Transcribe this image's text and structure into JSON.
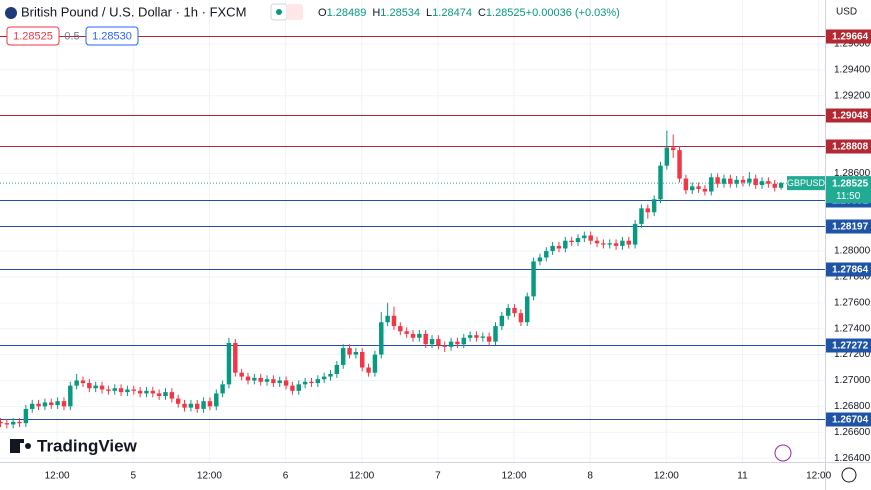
{
  "chart_data": {
    "type": "candlestick",
    "title": "British Pound / U.S. Dollar · 1h · FXCM",
    "ohlc_legend": [
      {
        "key": "O",
        "value": "1.28489"
      },
      {
        "key": "H",
        "value": "1.28534"
      },
      {
        "key": "L",
        "value": "1.28474"
      },
      {
        "key": "C",
        "value": "1.28525"
      },
      {
        "key": "",
        "value": "+0.00036 (+0.03%)"
      }
    ],
    "bid": "1.28525",
    "spread": "0.5",
    "ask": "1.28530",
    "currency": "USD",
    "brand": "TradingView",
    "symbol": "GBPUSD",
    "countdown": "11:50",
    "last_price": 1.28525,
    "up_color": "#089981",
    "down_color": "#f23645",
    "last_color": "#22ab94",
    "grid": true,
    "xlim": [
      0,
      130
    ],
    "xticks": [
      {
        "value": 9,
        "label": "12:00"
      },
      {
        "value": 21,
        "label": "5"
      },
      {
        "value": 33,
        "label": "12:00"
      },
      {
        "value": 45,
        "label": "6"
      },
      {
        "value": 57,
        "label": "12:00"
      },
      {
        "value": 69,
        "label": "7"
      },
      {
        "value": 81,
        "label": "12:00"
      },
      {
        "value": 93,
        "label": "8"
      },
      {
        "value": 105,
        "label": "12:00"
      },
      {
        "value": 117,
        "label": "11"
      },
      {
        "value": 129,
        "label": "12:00"
      }
    ],
    "ylim": [
      1.2637,
      1.2994
    ],
    "yticks": [
      {
        "value": 1.296,
        "label": "1.29600"
      },
      {
        "value": 1.294,
        "label": "1.29400"
      },
      {
        "value": 1.292,
        "label": "1.29200"
      },
      {
        "value": 1.286,
        "label": "1.28600"
      },
      {
        "value": 1.28,
        "label": "1.28000"
      },
      {
        "value": 1.278,
        "label": "1.27800"
      },
      {
        "value": 1.276,
        "label": "1.27600"
      },
      {
        "value": 1.274,
        "label": "1.27400"
      },
      {
        "value": 1.272,
        "label": "1.27200"
      },
      {
        "value": 1.27,
        "label": "1.27000"
      },
      {
        "value": 1.268,
        "label": "1.26800"
      },
      {
        "value": 1.266,
        "label": "1.26600"
      },
      {
        "value": 1.264,
        "label": "1.26400"
      }
    ],
    "levels": [
      {
        "value": 1.29664,
        "color": "#b22833"
      },
      {
        "value": 1.29048,
        "color": "#b22833"
      },
      {
        "value": 1.28808,
        "color": "#b22833"
      },
      {
        "value": 1.28391,
        "color": "#1e53a6"
      },
      {
        "value": 1.28197,
        "color": "#1e53a6"
      },
      {
        "value": 1.27864,
        "color": "#1e53a6"
      },
      {
        "value": 1.27272,
        "color": "#1e53a6"
      },
      {
        "value": 1.26704,
        "color": "#1e53a6"
      }
    ],
    "open": [
      1.2668,
      1.2667,
      1.2666,
      1.2668,
      1.2667,
      1.2678,
      1.2682,
      1.268,
      1.2683,
      1.2681,
      1.2684,
      1.268,
      1.2696,
      1.27,
      1.2698,
      1.2694,
      1.2696,
      1.2693,
      1.2692,
      1.2694,
      1.2691,
      1.2693,
      1.2692,
      1.269,
      1.2692,
      1.269,
      1.2688,
      1.2691,
      1.2686,
      1.2682,
      1.2679,
      1.2682,
      1.2678,
      1.2684,
      1.268,
      1.269,
      1.2697,
      1.2729,
      1.2706,
      1.2703,
      1.27,
      1.2702,
      1.2699,
      1.2701,
      1.2698,
      1.27,
      1.2696,
      1.2692,
      1.2697,
      1.2699,
      1.2698,
      1.2701,
      1.2703,
      1.2705,
      1.2712,
      1.2725,
      1.272,
      1.2722,
      1.271,
      1.2706,
      1.272,
      1.2745,
      1.275,
      1.2742,
      1.2738,
      1.2736,
      1.2733,
      1.2736,
      1.2728,
      1.2732,
      1.2727,
      1.2726,
      1.273,
      1.2728,
      1.2733,
      1.2735,
      1.2733,
      1.2734,
      1.273,
      1.2742,
      1.275,
      1.2756,
      1.2752,
      1.2745,
      1.2765,
      1.2792,
      1.2795,
      1.28,
      1.2804,
      1.2802,
      1.2808,
      1.2807,
      1.281,
      1.2812,
      1.2808,
      1.2806,
      1.2805,
      1.2806,
      1.2804,
      1.2808,
      1.2805,
      1.2821,
      1.2833,
      1.283,
      1.284,
      1.2866,
      1.288,
      1.2878,
      1.2856,
      1.2847,
      1.285,
      1.2848,
      1.2846,
      1.2857,
      1.2852,
      1.2856,
      1.2852,
      1.2855,
      1.2853,
      1.2856,
      1.2851,
      1.2854,
      1.2852,
      1.28489
    ],
    "high": [
      1.2671,
      1.267,
      1.2671,
      1.2671,
      1.2681,
      1.2685,
      1.2685,
      1.2686,
      1.2686,
      1.2687,
      1.2687,
      1.2699,
      1.2705,
      1.2703,
      1.2701,
      1.2699,
      1.2699,
      1.2696,
      1.2697,
      1.2697,
      1.2696,
      1.2696,
      1.2695,
      1.2695,
      1.2695,
      1.2693,
      1.2694,
      1.2694,
      1.2689,
      1.2685,
      1.2685,
      1.2685,
      1.2687,
      1.2687,
      1.2693,
      1.27,
      1.2733,
      1.2732,
      1.2709,
      1.2706,
      1.2705,
      1.2705,
      1.2704,
      1.2704,
      1.2703,
      1.2703,
      1.2699,
      1.27,
      1.2702,
      1.2702,
      1.2704,
      1.2706,
      1.2708,
      1.2715,
      1.2728,
      1.2728,
      1.2725,
      1.2725,
      1.2713,
      1.2723,
      1.2753,
      1.276,
      1.2757,
      1.2745,
      1.2741,
      1.2739,
      1.2739,
      1.2739,
      1.2735,
      1.2735,
      1.273,
      1.2733,
      1.2733,
      1.2736,
      1.2738,
      1.2738,
      1.2737,
      1.2737,
      1.2745,
      1.2753,
      1.2759,
      1.2759,
      1.2755,
      1.2768,
      1.2795,
      1.2798,
      1.2803,
      1.2807,
      1.2807,
      1.2811,
      1.2811,
      1.2813,
      1.2815,
      1.2815,
      1.2811,
      1.2809,
      1.2809,
      1.2809,
      1.2811,
      1.2811,
      1.2824,
      1.2836,
      1.2836,
      1.2843,
      1.2869,
      1.2893,
      1.289,
      1.2881,
      1.2859,
      1.2853,
      1.2853,
      1.2851,
      1.286,
      1.286,
      1.2859,
      1.2859,
      1.2858,
      1.2858,
      1.2861,
      1.2859,
      1.2857,
      1.2857,
      1.2855,
      1.28534
    ],
    "low": [
      1.2664,
      1.2663,
      1.2663,
      1.2664,
      1.2664,
      1.2675,
      1.2677,
      1.2677,
      1.2678,
      1.2678,
      1.2677,
      1.2677,
      1.2693,
      1.2695,
      1.2691,
      1.2691,
      1.269,
      1.2689,
      1.2689,
      1.2688,
      1.2688,
      1.2689,
      1.2687,
      1.2687,
      1.2687,
      1.2685,
      1.2685,
      1.2683,
      1.2679,
      1.2676,
      1.2676,
      1.2675,
      1.2675,
      1.2677,
      1.2677,
      1.2687,
      1.2694,
      1.2703,
      1.27,
      1.2697,
      1.2697,
      1.2696,
      1.2696,
      1.2695,
      1.2695,
      1.2693,
      1.2689,
      1.2689,
      1.2694,
      1.2695,
      1.2695,
      1.2698,
      1.27,
      1.2702,
      1.2709,
      1.2717,
      1.2717,
      1.2707,
      1.2703,
      1.2703,
      1.2717,
      1.2742,
      1.2739,
      1.2735,
      1.2733,
      1.273,
      1.273,
      1.2725,
      1.2725,
      1.2724,
      1.2722,
      1.2723,
      1.2725,
      1.2725,
      1.273,
      1.273,
      1.273,
      1.2727,
      1.2727,
      1.2739,
      1.2747,
      1.2749,
      1.2742,
      1.2742,
      1.2762,
      1.2789,
      1.2792,
      1.2797,
      1.2799,
      1.2799,
      1.2804,
      1.2804,
      1.2807,
      1.2805,
      1.2803,
      1.2802,
      1.2802,
      1.2801,
      1.2801,
      1.2802,
      1.2802,
      1.2818,
      1.2825,
      1.2827,
      1.2837,
      1.2863,
      1.2872,
      1.2853,
      1.2844,
      1.2844,
      1.2845,
      1.2843,
      1.2843,
      1.2849,
      1.2849,
      1.2849,
      1.2849,
      1.285,
      1.285,
      1.2848,
      1.2848,
      1.2849,
      1.2846,
      1.28474
    ],
    "close": [
      1.2667,
      1.2666,
      1.2668,
      1.2667,
      1.2678,
      1.2682,
      1.268,
      1.2683,
      1.2681,
      1.2684,
      1.268,
      1.2696,
      1.27,
      1.2698,
      1.2694,
      1.2696,
      1.2693,
      1.2692,
      1.2694,
      1.2691,
      1.2693,
      1.2692,
      1.269,
      1.2692,
      1.269,
      1.2688,
      1.2691,
      1.2686,
      1.2682,
      1.2679,
      1.2682,
      1.2678,
      1.2684,
      1.268,
      1.269,
      1.2697,
      1.2729,
      1.2706,
      1.2703,
      1.27,
      1.2702,
      1.2699,
      1.2701,
      1.2698,
      1.27,
      1.2696,
      1.2692,
      1.2697,
      1.2699,
      1.2698,
      1.2701,
      1.2703,
      1.2705,
      1.2712,
      1.2725,
      1.272,
      1.2722,
      1.271,
      1.2706,
      1.272,
      1.2745,
      1.275,
      1.2742,
      1.2738,
      1.2736,
      1.2733,
      1.2736,
      1.2728,
      1.2732,
      1.2727,
      1.2726,
      1.273,
      1.2728,
      1.2733,
      1.2735,
      1.2733,
      1.2734,
      1.273,
      1.2742,
      1.275,
      1.2756,
      1.2752,
      1.2745,
      1.2765,
      1.2792,
      1.2795,
      1.28,
      1.2804,
      1.2802,
      1.2808,
      1.2807,
      1.281,
      1.2812,
      1.2808,
      1.2806,
      1.2805,
      1.2806,
      1.2804,
      1.2808,
      1.2805,
      1.2821,
      1.2833,
      1.283,
      1.284,
      1.2866,
      1.288,
      1.2878,
      1.2856,
      1.2847,
      1.285,
      1.2848,
      1.2846,
      1.2857,
      1.2852,
      1.2856,
      1.2852,
      1.2855,
      1.2853,
      1.2856,
      1.2851,
      1.2854,
      1.2852,
      1.28489,
      1.28525
    ]
  }
}
